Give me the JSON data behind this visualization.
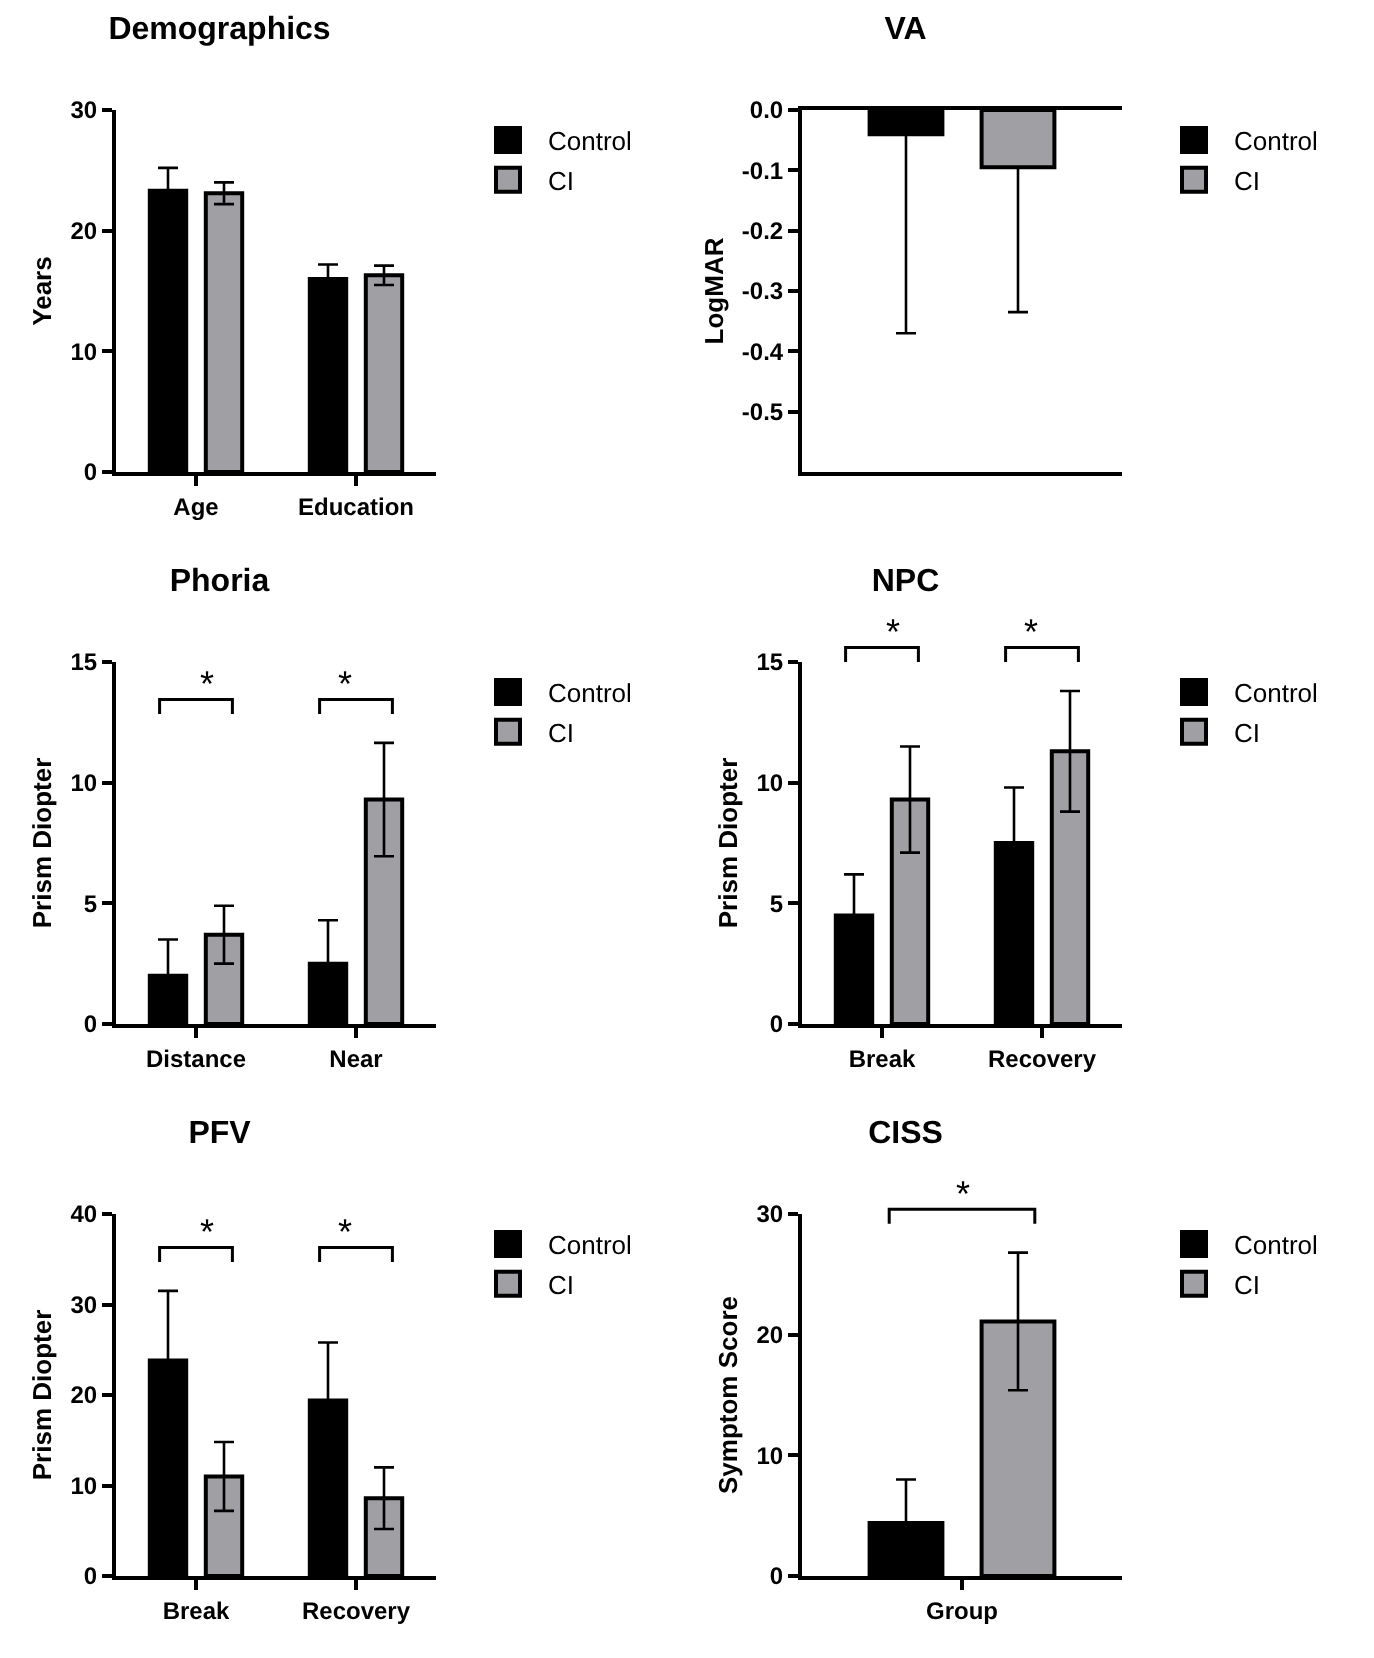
{
  "chart_data": [
    {
      "type": "bar",
      "title": "Demographics",
      "ylabel": "Years",
      "categories": [
        "Age",
        "Education"
      ],
      "ylim": [
        0,
        30
      ],
      "yticks": [
        0,
        10,
        20,
        30
      ],
      "grid": false,
      "legend": "top right",
      "series": [
        {
          "name": "Control",
          "color": "#000000",
          "values": [
            23.3,
            16.0
          ],
          "errors": [
            1.9,
            1.2
          ]
        },
        {
          "name": "CI",
          "color": "#a0a0a4",
          "values": [
            23.1,
            16.3
          ],
          "errors": [
            0.9,
            0.8
          ]
        }
      ]
    },
    {
      "type": "bar",
      "title": "VA",
      "ylabel": "LogMAR",
      "categories": [
        null
      ],
      "ylim": [
        -0.6,
        0
      ],
      "yticks": [
        {
          "value": 0,
          "label": "0.0"
        },
        -0.1,
        -0.2,
        -0.3,
        -0.4,
        -0.5
      ],
      "tick_labels": "y",
      "grid": false,
      "legend": "top right",
      "series": [
        {
          "name": "Control",
          "color": "#000000",
          "values": [
            -0.04
          ],
          "errors": [
            [
              -0.37,
              -0.04
            ]
          ]
        },
        {
          "name": "CI",
          "color": "#a0a0a4",
          "values": [
            -0.095
          ],
          "errors": [
            [
              -0.335,
              -0.095
            ]
          ]
        }
      ]
    },
    {
      "type": "bar",
      "title": "Phoria",
      "ylabel": "Prism Diopter",
      "categories": [
        "Distance",
        "Near"
      ],
      "ylim": [
        0,
        15
      ],
      "yticks": [
        0,
        5,
        10,
        15
      ],
      "grid": false,
      "legend": "top right",
      "annotations": [
        "*",
        "*"
      ],
      "series": [
        {
          "name": "Control",
          "color": "#000000",
          "values": [
            2.0,
            2.5
          ],
          "errors": [
            1.5,
            1.8
          ]
        },
        {
          "name": "CI",
          "color": "#a0a0a4",
          "values": [
            3.7,
            9.3
          ],
          "errors": [
            1.2,
            2.35
          ]
        }
      ]
    },
    {
      "type": "bar",
      "title": "NPC",
      "ylabel": "Prism Diopter",
      "categories": [
        "Break",
        "Recovery"
      ],
      "ylim": [
        0,
        15
      ],
      "yticks": [
        0,
        5,
        10,
        15
      ],
      "grid": false,
      "legend": "top right",
      "annotations": [
        "*",
        "*"
      ],
      "series": [
        {
          "name": "Control",
          "color": "#000000",
          "values": [
            4.5,
            7.5
          ],
          "errors": [
            1.7,
            2.3
          ]
        },
        {
          "name": "CI",
          "color": "#a0a0a4",
          "values": [
            9.3,
            11.3
          ],
          "errors": [
            2.2,
            2.5
          ]
        }
      ]
    },
    {
      "type": "bar",
      "title": "PFV",
      "ylabel": "Prism Diopter",
      "categories": [
        "Break",
        "Recovery"
      ],
      "ylim": [
        0,
        40
      ],
      "yticks": [
        0,
        10,
        20,
        30,
        40
      ],
      "grid": false,
      "legend": "top right",
      "annotations": [
        "*",
        "*"
      ],
      "series": [
        {
          "name": "Control",
          "color": "#000000",
          "values": [
            23.8,
            19.4
          ],
          "errors": [
            7.7,
            6.4
          ]
        },
        {
          "name": "CI",
          "color": "#a0a0a4",
          "values": [
            11.0,
            8.6
          ],
          "errors": [
            3.8,
            3.4
          ]
        }
      ]
    },
    {
      "type": "bar",
      "title": "CISS",
      "ylabel": "Symptom Score",
      "categories": [
        "Group"
      ],
      "ylim": [
        0,
        30
      ],
      "yticks": [
        0,
        10,
        20,
        30
      ],
      "grid": false,
      "legend": "top right",
      "annotations": [
        "*"
      ],
      "series": [
        {
          "name": "Control",
          "color": "#000000",
          "values": [
            4.4
          ],
          "errors": [
            3.6
          ]
        },
        {
          "name": "CI",
          "color": "#a0a0a4",
          "values": [
            21.1
          ],
          "errors": [
            5.7
          ]
        }
      ]
    }
  ]
}
